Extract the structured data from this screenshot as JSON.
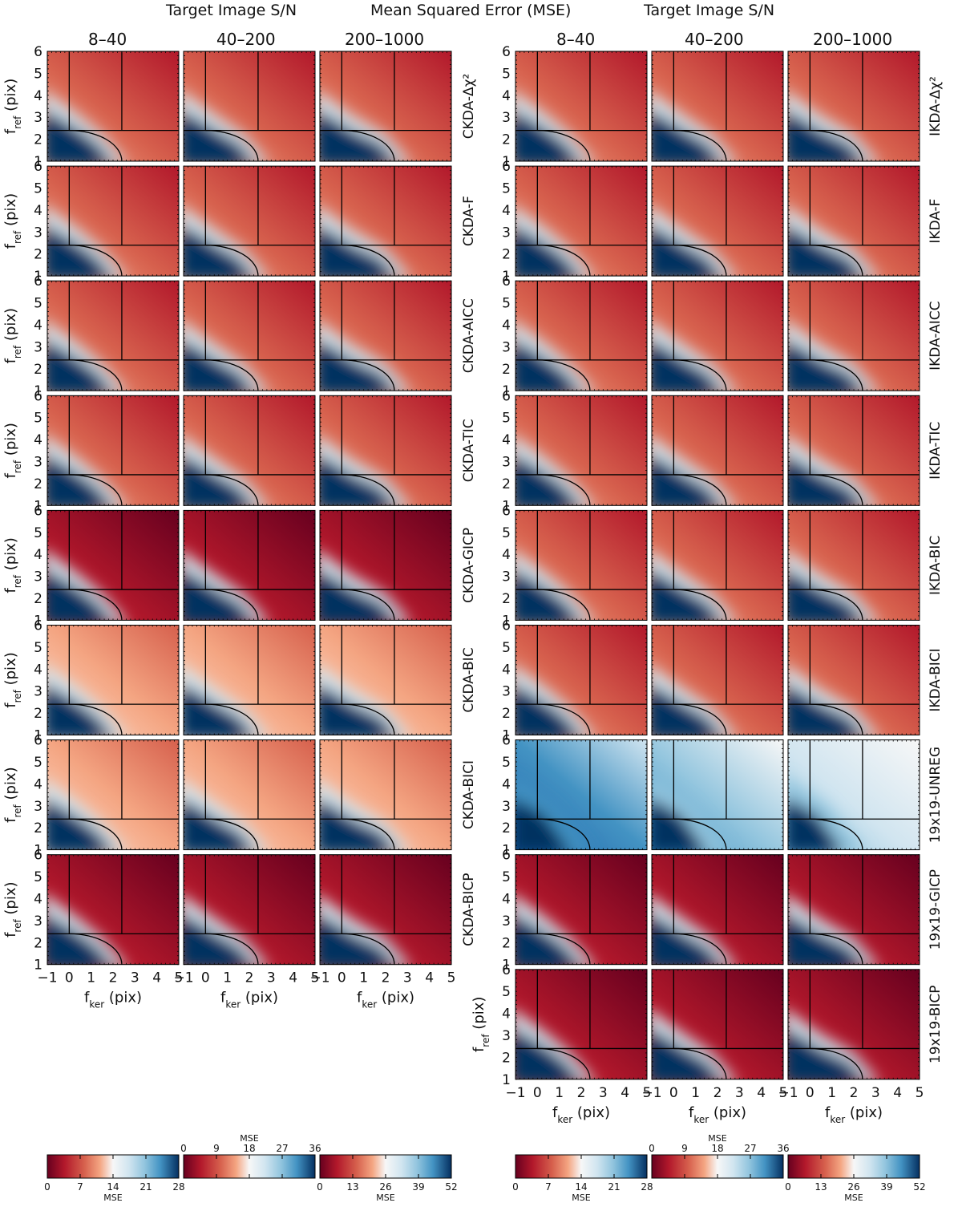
{
  "header": {
    "left_title": "Target Image S/N",
    "center_title": "Mean Squared Error (MSE)",
    "right_title": "Target Image S/N",
    "sn_bins": [
      "8–40",
      "40–200",
      "200–1000"
    ]
  },
  "axes": {
    "xlabel": "f_ker (pix)",
    "ylabel": "f_ref (pix)",
    "xlim": [
      -1,
      5
    ],
    "ylim": [
      1,
      6
    ],
    "xticks": [
      "−1",
      "0",
      "1",
      "2",
      "3",
      "4",
      "5"
    ],
    "yticks": [
      "1",
      "2",
      "3",
      "4",
      "5",
      "6"
    ],
    "guide_lines": {
      "vertical_x": [
        0,
        2.4
      ],
      "horizontal_y": [
        2.4
      ]
    },
    "curve": "quarter-circle from (0, 2.4) to (2.4, 1)"
  },
  "colorbars": [
    {
      "group": "left",
      "label": "MSE",
      "ticks": [
        "0",
        "7",
        "14",
        "21",
        "28"
      ],
      "range": [
        0,
        28
      ],
      "label_position": "bottom"
    },
    {
      "group": "left",
      "label": "MSE",
      "ticks": [
        "0",
        "9",
        "18",
        "27",
        "36"
      ],
      "range": [
        0,
        36
      ],
      "label_position": "top"
    },
    {
      "group": "left",
      "label": "MSE",
      "ticks": [
        "0",
        "13",
        "26",
        "39",
        "52"
      ],
      "range": [
        0,
        52
      ],
      "label_position": "bottom"
    },
    {
      "group": "right",
      "label": "MSE",
      "ticks": [
        "0",
        "7",
        "14",
        "21",
        "28"
      ],
      "range": [
        0,
        28
      ],
      "label_position": "bottom"
    },
    {
      "group": "right",
      "label": "MSE",
      "ticks": [
        "0",
        "9",
        "18",
        "27",
        "36"
      ],
      "range": [
        0,
        36
      ],
      "label_position": "top"
    },
    {
      "group": "right",
      "label": "MSE",
      "ticks": [
        "0",
        "13",
        "26",
        "39",
        "52"
      ],
      "range": [
        0,
        52
      ],
      "label_position": "bottom"
    }
  ],
  "colors": {
    "low_mse": "#67001f",
    "mid_mse": "#f7f7f7",
    "high_mse": "#053061"
  },
  "chart_data": {
    "type": "heatmap",
    "panel_grid": {
      "columns_per_group": 3,
      "columns": [
        "8–40",
        "40–200",
        "200–1000"
      ]
    },
    "left_rows": [
      {
        "label": "CKDA-Δχ²",
        "variant": "std"
      },
      {
        "label": "CKDA-F",
        "variant": "std"
      },
      {
        "label": "CKDA-AICC",
        "variant": "std"
      },
      {
        "label": "CKDA-TIC",
        "variant": "std"
      },
      {
        "label": "CKDA-GICP",
        "variant": "dark"
      },
      {
        "label": "CKDA-BIC",
        "variant": "light"
      },
      {
        "label": "CKDA-BICI",
        "variant": "light"
      },
      {
        "label": "CKDA-BICP",
        "variant": "dark"
      }
    ],
    "right_rows": [
      {
        "label": "IKDA-Δχ²",
        "variant": "std"
      },
      {
        "label": "IKDA-F",
        "variant": "std"
      },
      {
        "label": "IKDA-AICC",
        "variant": "std"
      },
      {
        "label": "IKDA-TIC",
        "variant": "std"
      },
      {
        "label": "IKDA-BIC",
        "variant": "std"
      },
      {
        "label": "IKDA-BICI",
        "variant": "std"
      },
      {
        "label": "19x19-UNREG",
        "variant": "unreg"
      },
      {
        "label": "19x19-GICP",
        "variant": "dark"
      },
      {
        "label": "19x19-BICP",
        "variant": "dark"
      }
    ]
  }
}
